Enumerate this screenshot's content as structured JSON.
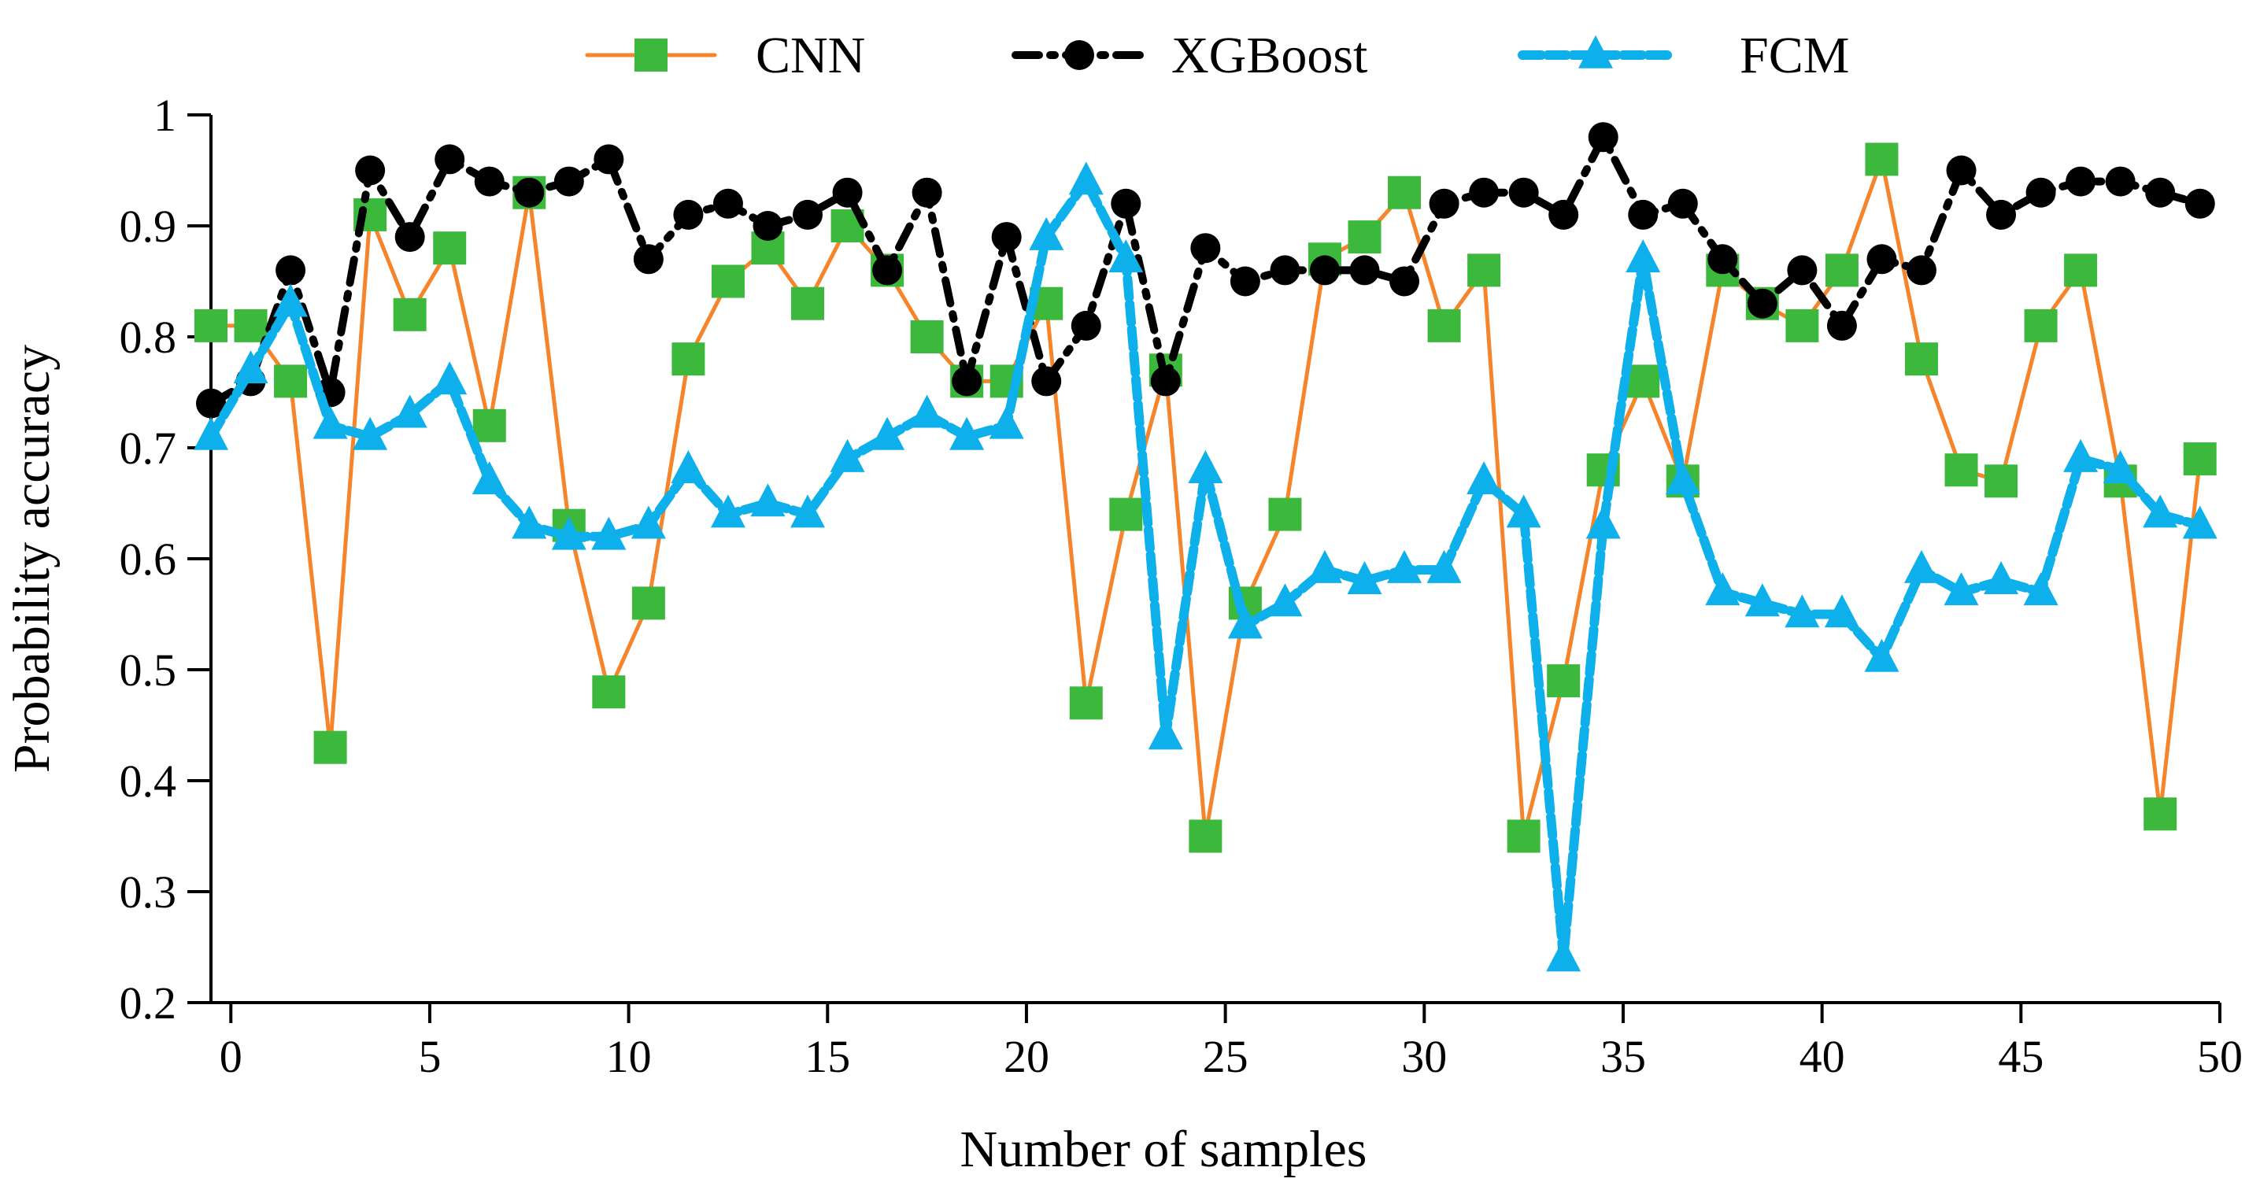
{
  "chart_data": {
    "type": "line",
    "title": "",
    "xlabel": "Number of samples",
    "ylabel": "Probability accuracy",
    "xlim": [
      -0.5,
      50
    ],
    "ylim": [
      0.2,
      1.0
    ],
    "xticks": [
      0,
      5,
      10,
      15,
      20,
      25,
      30,
      35,
      40,
      45,
      50
    ],
    "xtick_labels": [
      "0",
      "5",
      "10",
      "15",
      "20",
      "25",
      "30",
      "35",
      "40",
      "45",
      "50"
    ],
    "yticks": [
      0.2,
      0.3,
      0.4,
      0.5,
      0.6,
      0.7,
      0.8,
      0.9,
      1.0
    ],
    "ytick_labels": [
      "0.2",
      "0.3",
      "0.4",
      "0.5",
      "0.6",
      "0.7",
      "0.8",
      "0.9",
      "1"
    ],
    "grid": false,
    "legend_position": "top",
    "x": [
      -0.5,
      0.5,
      1.5,
      2.5,
      3.5,
      4.5,
      5.5,
      6.5,
      7.5,
      8.5,
      9.5,
      10.5,
      11.5,
      12.5,
      13.5,
      14.5,
      15.5,
      16.5,
      17.5,
      18.5,
      19.5,
      20.5,
      21.5,
      22.5,
      23.5,
      24.5,
      25.5,
      26.5,
      27.5,
      28.5,
      29.5,
      30.5,
      31.5,
      32.5,
      33.5,
      34.5,
      35.5,
      36.5,
      37.5,
      38.5,
      39.5,
      40.5,
      41.5,
      42.5,
      43.5,
      44.5,
      45.5,
      46.5,
      47.5,
      48.5,
      49.5
    ],
    "series": [
      {
        "name": "CNN",
        "color": "#f5842a",
        "marker_color": "#3cb93c",
        "marker": "square",
        "line_style": "solid",
        "values": [
          0.81,
          0.81,
          0.76,
          0.43,
          0.91,
          0.82,
          0.88,
          0.72,
          0.93,
          0.63,
          0.48,
          0.56,
          0.78,
          0.85,
          0.88,
          0.83,
          0.9,
          0.86,
          0.8,
          0.76,
          0.76,
          0.83,
          0.47,
          0.64,
          0.77,
          0.35,
          0.56,
          0.64,
          0.87,
          0.89,
          0.93,
          0.81,
          0.86,
          0.35,
          0.49,
          0.68,
          0.76,
          0.67,
          0.86,
          0.83,
          0.81,
          0.86,
          0.96,
          0.78,
          0.68,
          0.67,
          0.81,
          0.86,
          0.67,
          0.37,
          0.69
        ]
      },
      {
        "name": "XGBoost",
        "color": "#000000",
        "marker_color": "#000000",
        "marker": "circle",
        "line_style": "dash-dot",
        "values": [
          0.74,
          0.76,
          0.86,
          0.75,
          0.95,
          0.89,
          0.96,
          0.94,
          0.93,
          0.94,
          0.96,
          0.87,
          0.91,
          0.92,
          0.9,
          0.91,
          0.93,
          0.86,
          0.93,
          0.76,
          0.89,
          0.76,
          0.81,
          0.92,
          0.76,
          0.88,
          0.85,
          0.86,
          0.86,
          0.86,
          0.85,
          0.92,
          0.93,
          0.93,
          0.91,
          0.98,
          0.91,
          0.92,
          0.87,
          0.83,
          0.86,
          0.81,
          0.87,
          0.86,
          0.95,
          0.91,
          0.93,
          0.94,
          0.94,
          0.93,
          0.92
        ]
      },
      {
        "name": "FCM",
        "color": "#0db0ea",
        "marker_color": "#0db0ea",
        "marker": "triangle",
        "line_style": "dashed",
        "values": [
          0.71,
          0.77,
          0.83,
          0.72,
          0.71,
          0.73,
          0.76,
          0.67,
          0.63,
          0.62,
          0.62,
          0.63,
          0.68,
          0.64,
          0.65,
          0.64,
          0.69,
          0.71,
          0.73,
          0.71,
          0.72,
          0.89,
          0.94,
          0.87,
          0.44,
          0.68,
          0.54,
          0.56,
          0.59,
          0.58,
          0.59,
          0.59,
          0.67,
          0.64,
          0.24,
          0.63,
          0.87,
          0.67,
          0.57,
          0.56,
          0.55,
          0.55,
          0.51,
          0.59,
          0.57,
          0.58,
          0.57,
          0.69,
          0.68,
          0.64,
          0.63
        ]
      }
    ]
  }
}
